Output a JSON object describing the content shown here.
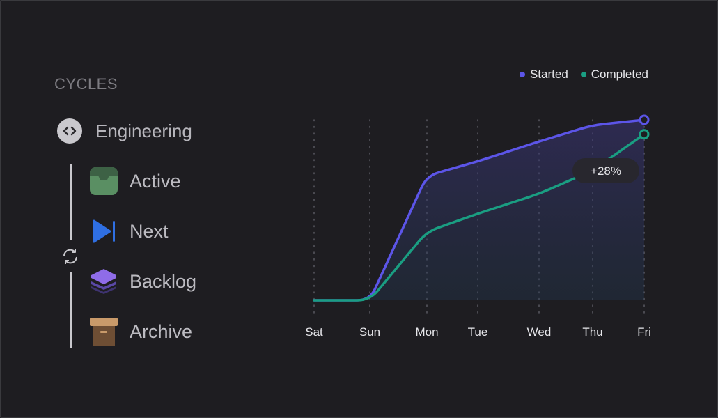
{
  "sidebar": {
    "section_title": "CYCLES",
    "team": {
      "label": "Engineering",
      "icon": "code-brackets-icon"
    },
    "cycle_icon": "refresh-icon",
    "items": [
      {
        "label": "Active",
        "icon": "inbox-tray-icon",
        "color": "#4f8a5c"
      },
      {
        "label": "Next",
        "icon": "play-next-icon",
        "color": "#2f6fe3"
      },
      {
        "label": "Backlog",
        "icon": "stack-layers-icon",
        "color": "#8f6ce8"
      },
      {
        "label": "Archive",
        "icon": "archive-box-icon",
        "color": "#b98a5c"
      }
    ]
  },
  "chart_data": {
    "type": "line",
    "categories": [
      "Sat",
      "Sun",
      "Mon",
      "Tue",
      "Wed",
      "Thu",
      "Fri"
    ],
    "series": [
      {
        "name": "Started",
        "color": "#5c55e8",
        "values": [
          0,
          0,
          69,
          77,
          88,
          97,
          100
        ]
      },
      {
        "name": "Completed",
        "color": "#1a9e82",
        "values": [
          0,
          0,
          38,
          48,
          59,
          72,
          92
        ]
      }
    ],
    "annotation": {
      "text": "+28%",
      "category": "Thu"
    },
    "ylim": [
      0,
      100
    ],
    "legend": "top-right",
    "grid": "vertical dotted"
  }
}
